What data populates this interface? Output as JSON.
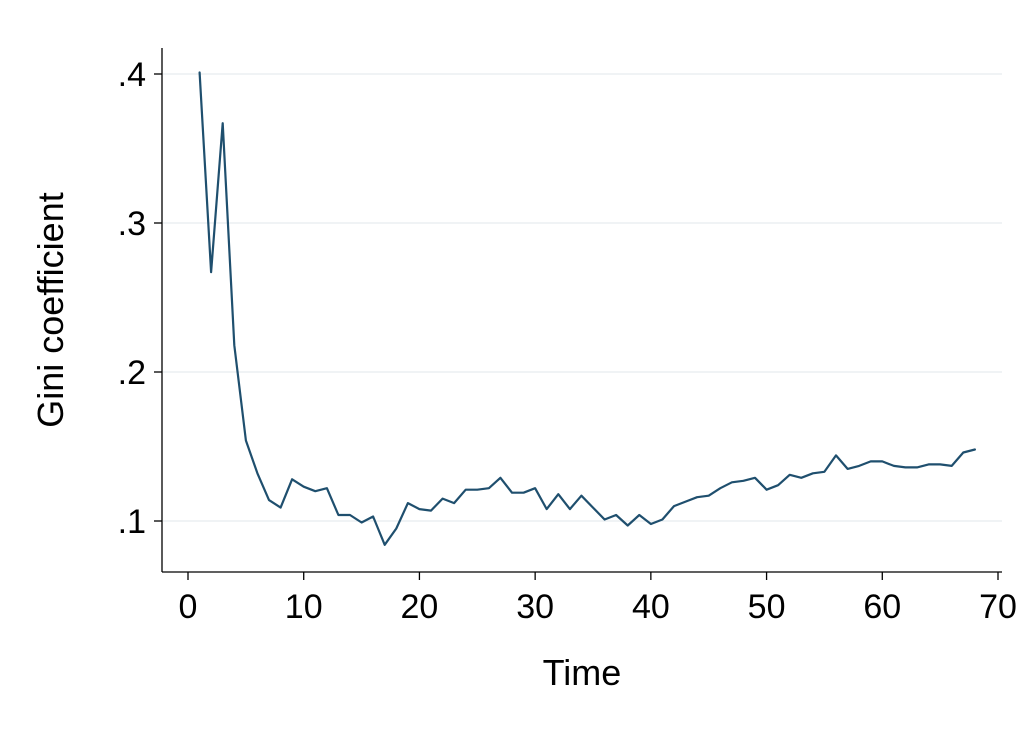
{
  "chart_data": {
    "type": "line",
    "xlabel": "Time",
    "ylabel": "Gini coefficient",
    "xlim": [
      0,
      70
    ],
    "ylim": [
      0.068,
      0.42
    ],
    "x_ticks": [
      0,
      10,
      20,
      30,
      40,
      50,
      60,
      70
    ],
    "x_tick_labels": [
      "0",
      "10",
      "20",
      "30",
      "40",
      "50",
      "60",
      "70"
    ],
    "y_ticks": [
      0.1,
      0.2,
      0.3,
      0.4
    ],
    "y_tick_labels": [
      ".1",
      ".2",
      ".3",
      ".4"
    ],
    "grid": "horizontal",
    "legend": "none",
    "series_color": "#1f4f6e",
    "series": [
      {
        "x": [
          1,
          2,
          3,
          4,
          5,
          6,
          7,
          8,
          9,
          10,
          11,
          12,
          13,
          14,
          15,
          16,
          17,
          18,
          19,
          20,
          21,
          22,
          23,
          24,
          25,
          26,
          27,
          28,
          29,
          30,
          31,
          32,
          33,
          34,
          35,
          36,
          37,
          38,
          39,
          40,
          41,
          42,
          43,
          44,
          45,
          46,
          47,
          48,
          49,
          50,
          51,
          52,
          53,
          54,
          55,
          56,
          57,
          58,
          59,
          60,
          61,
          62,
          63,
          64,
          65,
          66,
          67,
          68
        ],
        "values": [
          0.401,
          0.267,
          0.367,
          0.218,
          0.154,
          0.132,
          0.114,
          0.109,
          0.128,
          0.123,
          0.12,
          0.122,
          0.104,
          0.104,
          0.099,
          0.103,
          0.084,
          0.095,
          0.112,
          0.108,
          0.107,
          0.115,
          0.112,
          0.121,
          0.121,
          0.122,
          0.129,
          0.119,
          0.119,
          0.122,
          0.108,
          0.118,
          0.108,
          0.117,
          0.109,
          0.101,
          0.104,
          0.097,
          0.104,
          0.098,
          0.101,
          0.11,
          0.113,
          0.116,
          0.117,
          0.122,
          0.126,
          0.127,
          0.129,
          0.121,
          0.124,
          0.131,
          0.129,
          0.132,
          0.133,
          0.144,
          0.135,
          0.137,
          0.14,
          0.14,
          0.137,
          0.136,
          0.136,
          0.138,
          0.138,
          0.137,
          0.146,
          0.148
        ]
      }
    ]
  }
}
